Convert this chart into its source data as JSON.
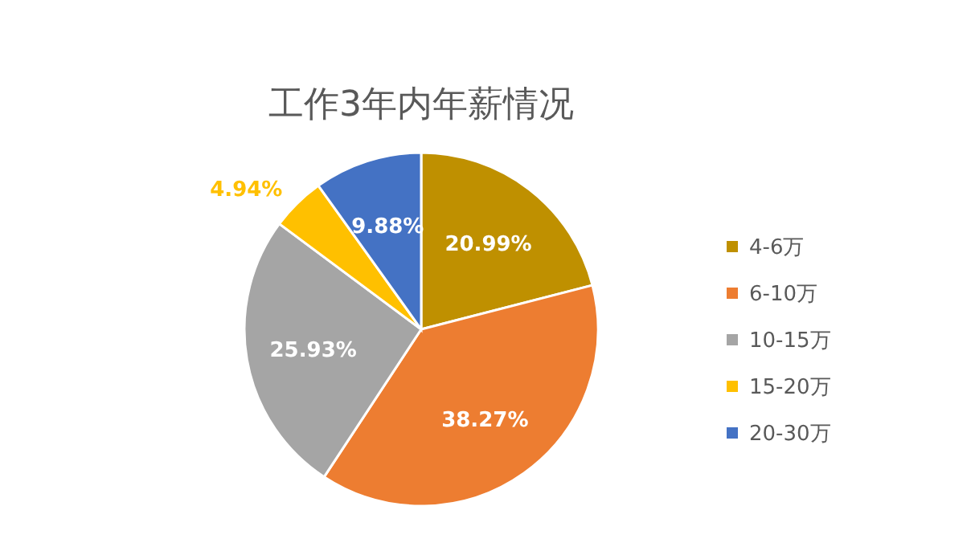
{
  "chart_data": {
    "type": "pie",
    "title": "工作3年内年薪情况",
    "categories": [
      "4-6万",
      "6-10万",
      "10-15万",
      "15-20万",
      "20-30万"
    ],
    "values": [
      20.99,
      38.27,
      25.93,
      4.94,
      9.88
    ],
    "colors": [
      "#bf9000",
      "#ed7d31",
      "#a5a5a5",
      "#ffc000",
      "#4472c4"
    ],
    "value_labels": [
      "20.99%",
      "38.27%",
      "25.93%",
      "4.94%",
      "9.88%"
    ],
    "legend": "right"
  }
}
